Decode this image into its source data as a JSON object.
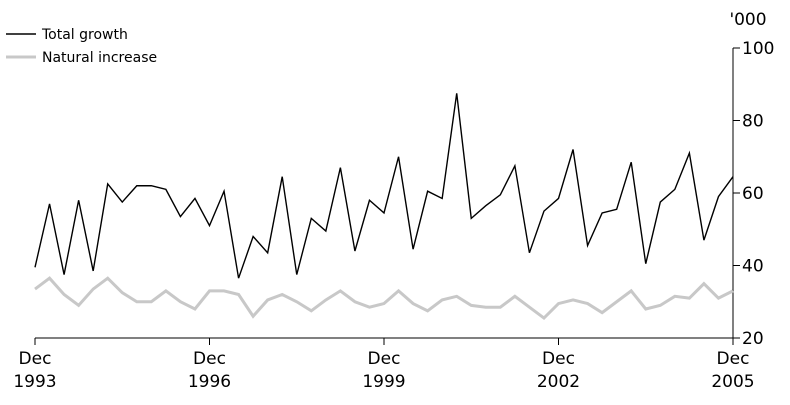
{
  "chart_data": {
    "type": "line",
    "unit_label": "'000",
    "ylim": [
      20,
      100
    ],
    "y_ticks": [
      20,
      40,
      60,
      80,
      100
    ],
    "x_ticks": [
      {
        "top": "Dec",
        "bottom": "1993"
      },
      {
        "top": "Dec",
        "bottom": "1996"
      },
      {
        "top": "Dec",
        "bottom": "1999"
      },
      {
        "top": "Dec",
        "bottom": "2002"
      },
      {
        "top": "Dec",
        "bottom": "2005"
      }
    ],
    "x_start": "Dec 1993",
    "x_end": "Dec 2005",
    "frequency": "quarterly",
    "grid": false,
    "legend_position": "top-left",
    "series": [
      {
        "name": "Total growth",
        "color": "#000000",
        "values": [
          39.5,
          57,
          37.5,
          58,
          38.5,
          62.5,
          57.5,
          62,
          62,
          61,
          53.5,
          58.5,
          51,
          60.5,
          36.5,
          48,
          43.5,
          64.5,
          37.5,
          53,
          49.5,
          67,
          44,
          58,
          54.5,
          70,
          44.5,
          60.5,
          58.5,
          87.5,
          53,
          56.5,
          59.5,
          67.5,
          43.5,
          55,
          58.5,
          72,
          45.5,
          54.5,
          55.5,
          68.5,
          40.5,
          57.5,
          61,
          71,
          47,
          59,
          64.5
        ]
      },
      {
        "name": "Natural increase",
        "color": "#c8c8c8",
        "values": [
          33.5,
          36.5,
          32,
          29,
          33.5,
          36.5,
          32.5,
          30,
          30,
          33,
          30,
          28,
          33,
          33,
          32,
          26,
          30.5,
          32,
          30,
          27.5,
          30.5,
          33,
          30,
          28.5,
          29.5,
          33,
          29.5,
          27.5,
          30.5,
          31.5,
          29,
          28.5,
          28.5,
          31.5,
          28.5,
          25.5,
          29.5,
          30.5,
          29.5,
          27,
          30,
          33,
          28,
          29,
          31.5,
          31,
          35,
          31,
          33
        ]
      }
    ]
  }
}
